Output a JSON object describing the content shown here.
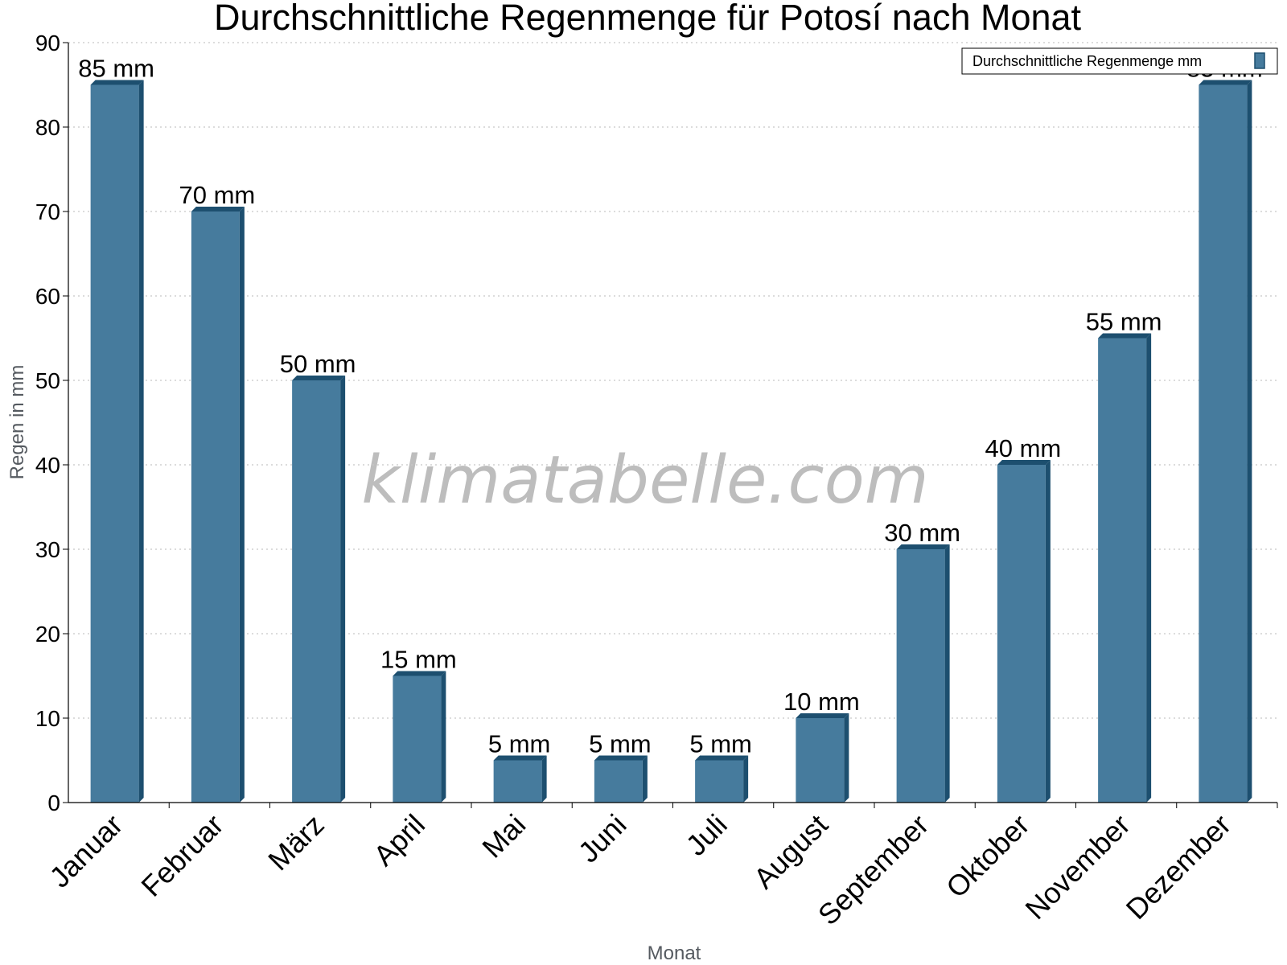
{
  "chart_data": {
    "type": "bar",
    "title": "Durchschnittliche Regenmenge für Potosí nach Monat",
    "xlabel": "Monat",
    "ylabel": "Regen in mm",
    "categories": [
      "Januar",
      "Februar",
      "März",
      "April",
      "Mai",
      "Juni",
      "Juli",
      "August",
      "September",
      "Oktober",
      "November",
      "Dezember"
    ],
    "series": [
      {
        "name": "Durchschnittliche Regenmenge mm",
        "values": [
          85,
          70,
          50,
          15,
          5,
          5,
          5,
          10,
          30,
          40,
          55,
          85
        ],
        "labels": [
          "85 mm",
          "70 mm",
          "50 mm",
          "15 mm",
          "5 mm",
          "5 mm",
          "5 mm",
          "10 mm",
          "30 mm",
          "40 mm",
          "55 mm",
          "85 mm"
        ]
      }
    ],
    "ylim": [
      0,
      90
    ],
    "yticks": [
      "0",
      "10",
      "20",
      "30",
      "40",
      "50",
      "60",
      "70",
      "80",
      "90"
    ],
    "grid": true,
    "legend_position": "top-right",
    "colors": {
      "bar": "#467b9d",
      "bar_side": "#1d4f6f",
      "grid": "#c8c8c8"
    },
    "watermark": "klimatabelle.com"
  }
}
